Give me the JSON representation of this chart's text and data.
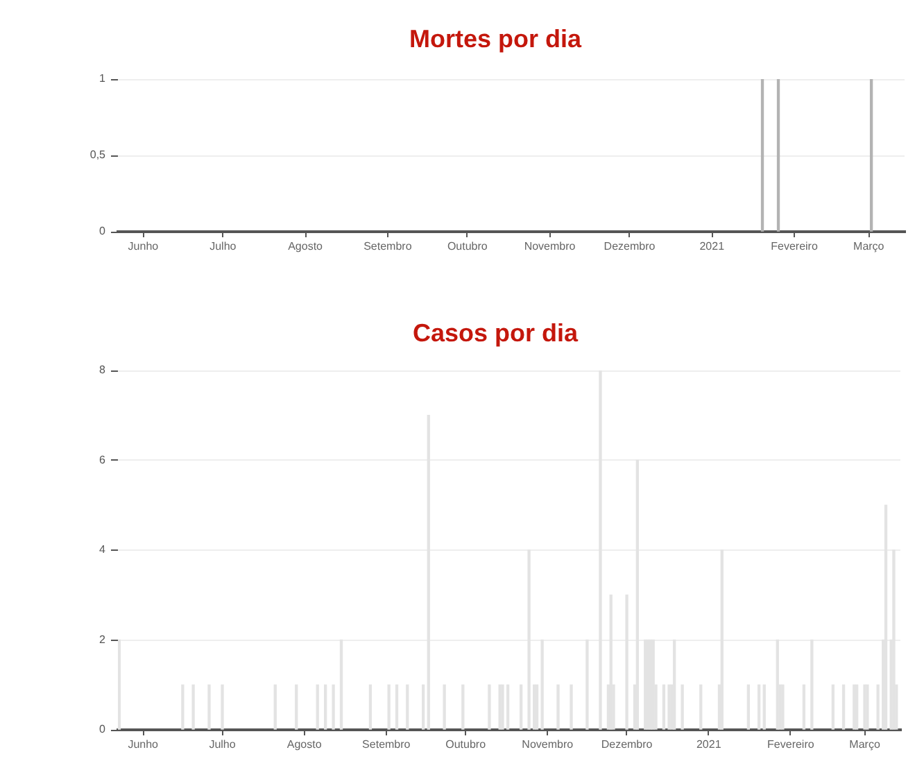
{
  "chart_data": [
    {
      "type": "bar",
      "title": "Mortes por dia",
      "x": [
        "2021-01-20",
        "2021-01-26",
        "2021-03-02"
      ],
      "values": [
        1,
        1,
        1
      ],
      "color": "#b3b3b3",
      "xlim": [
        "2020-05-22T12:00",
        "2021-03-14T12:00"
      ],
      "xticks": [
        {
          "value": "2020-06-01",
          "label": "Junho"
        },
        {
          "value": "2020-07-01",
          "label": "Julho"
        },
        {
          "value": "2020-08-01",
          "label": "Agosto"
        },
        {
          "value": "2020-09-01",
          "label": "Setembro"
        },
        {
          "value": "2020-10-01",
          "label": "Outubro"
        },
        {
          "value": "2020-11-01",
          "label": "Novembro"
        },
        {
          "value": "2020-12-01",
          "label": "Dezembro"
        },
        {
          "value": "2021-01-01",
          "label": "2021"
        },
        {
          "value": "2021-02-01",
          "label": "Fevereiro"
        },
        {
          "value": "2021-03-01",
          "label": "Março"
        }
      ],
      "ylim": [
        0,
        1
      ],
      "yticks": [
        0,
        {
          "value": 0.5,
          "label": "0,5"
        },
        1
      ],
      "grid": "y"
    },
    {
      "type": "bar",
      "title": "Casos por dia",
      "x": [
        "2020-05-23",
        "2020-06-16",
        "2020-06-20",
        "2020-06-26",
        "2020-07-01",
        "2020-07-21",
        "2020-07-29",
        "2020-08-06",
        "2020-08-09",
        "2020-08-12",
        "2020-08-15",
        "2020-08-26",
        "2020-09-02",
        "2020-09-05",
        "2020-09-09",
        "2020-09-15",
        "2020-09-17",
        "2020-09-23",
        "2020-09-30",
        "2020-10-10",
        "2020-10-14",
        "2020-10-15",
        "2020-10-17",
        "2020-10-22",
        "2020-10-25",
        "2020-10-27",
        "2020-10-28",
        "2020-10-30",
        "2020-11-05",
        "2020-11-10",
        "2020-11-16",
        "2020-11-21",
        "2020-11-24",
        "2020-11-25",
        "2020-11-26",
        "2020-12-01",
        "2020-12-04",
        "2020-12-05",
        "2020-12-08",
        "2020-12-09",
        "2020-12-10",
        "2020-12-11",
        "2020-12-12",
        "2020-12-15",
        "2020-12-17",
        "2020-12-18",
        "2020-12-19",
        "2020-12-22",
        "2020-12-29",
        "2021-01-05",
        "2021-01-06",
        "2021-01-16",
        "2021-01-20",
        "2021-01-22",
        "2021-01-27",
        "2021-01-28",
        "2021-01-29",
        "2021-02-06",
        "2021-02-09",
        "2021-02-17",
        "2021-02-21",
        "2021-02-25",
        "2021-02-26",
        "2021-03-01",
        "2021-03-02",
        "2021-03-06",
        "2021-03-08",
        "2021-03-09",
        "2021-03-11",
        "2021-03-12",
        "2021-03-13"
      ],
      "values": [
        2,
        1,
        1,
        1,
        1,
        1,
        1,
        1,
        1,
        1,
        2,
        1,
        1,
        1,
        1,
        1,
        7,
        1,
        1,
        1,
        1,
        1,
        1,
        1,
        4,
        1,
        1,
        2,
        1,
        1,
        2,
        8,
        1,
        3,
        1,
        3,
        1,
        6,
        2,
        2,
        2,
        2,
        1,
        1,
        1,
        1,
        2,
        1,
        1,
        1,
        4,
        1,
        1,
        1,
        2,
        1,
        1,
        1,
        2,
        1,
        1,
        1,
        1,
        1,
        1,
        1,
        2,
        5,
        2,
        4,
        1
      ],
      "color": "#e3e3e3",
      "xlim": [
        "2020-05-22T12:00",
        "2021-03-14T12:00"
      ],
      "xticks": [
        {
          "value": "2020-06-01",
          "label": "Junho"
        },
        {
          "value": "2020-07-01",
          "label": "Julho"
        },
        {
          "value": "2020-08-01",
          "label": "Agosto"
        },
        {
          "value": "2020-09-01",
          "label": "Setembro"
        },
        {
          "value": "2020-10-01",
          "label": "Outubro"
        },
        {
          "value": "2020-11-01",
          "label": "Novembro"
        },
        {
          "value": "2020-12-01",
          "label": "Dezembro"
        },
        {
          "value": "2021-01-01",
          "label": "2021"
        },
        {
          "value": "2021-02-01",
          "label": "Fevereiro"
        },
        {
          "value": "2021-03-01",
          "label": "Março"
        }
      ],
      "ylim": [
        0,
        8
      ],
      "yticks": [
        0,
        2,
        4,
        6,
        8
      ],
      "grid": "y"
    }
  ]
}
